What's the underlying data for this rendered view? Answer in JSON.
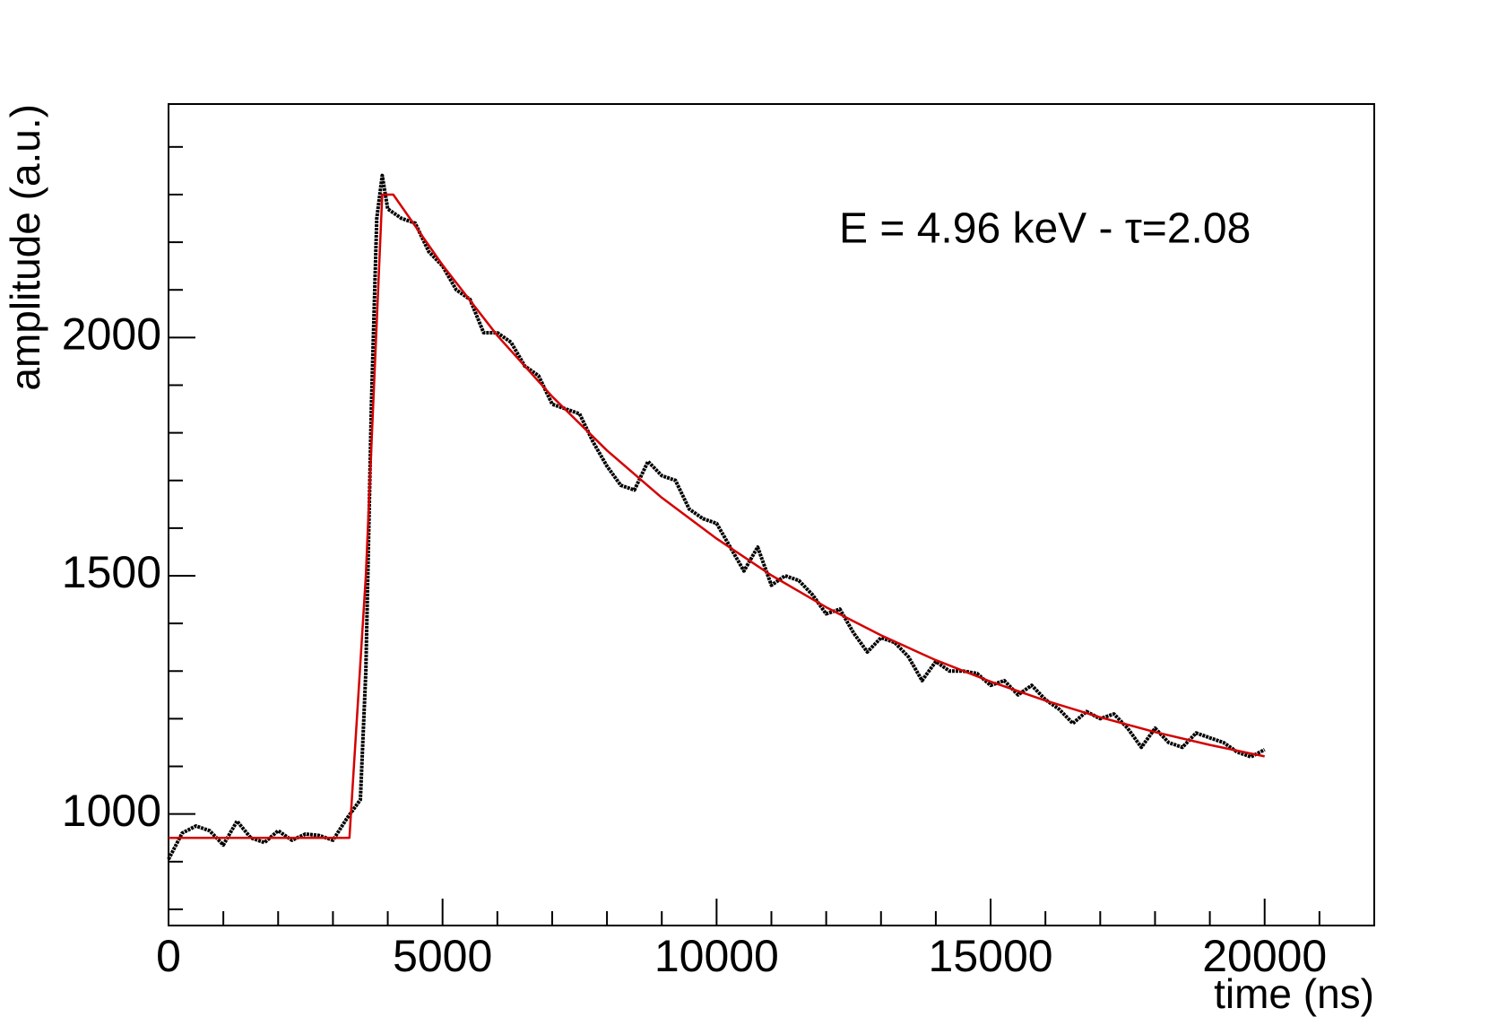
{
  "chart_data": {
    "type": "line",
    "annotation": "E = 4.96 keV - τ=2.08",
    "xlabel": "time (ns)",
    "ylabel": "amplitude (a.u.)",
    "xlim": [
      0,
      22000
    ],
    "xticks": [
      0,
      5000,
      10000,
      15000,
      20000
    ],
    "xminor_ticks": [
      1000,
      2000,
      3000,
      4000,
      6000,
      7000,
      8000,
      9000,
      11000,
      12000,
      13000,
      14000,
      16000,
      17000,
      18000,
      19000,
      21000
    ],
    "ylim": [
      766,
      2490
    ],
    "yticks": [
      1000,
      1500,
      2000
    ],
    "yminor_ticks": [
      800,
      900,
      1100,
      1200,
      1300,
      1400,
      1600,
      1700,
      1800,
      1900,
      2100,
      2200,
      2300,
      2400
    ],
    "series": [
      {
        "color": "#000000",
        "x": [
          0,
          250,
          500,
          750,
          1000,
          1250,
          1500,
          1750,
          2000,
          2250,
          2500,
          2750,
          3000,
          3250,
          3500,
          3600,
          3700,
          3800,
          3900,
          4000,
          4250,
          4500,
          4750,
          5000,
          5250,
          5500,
          5750,
          6000,
          6250,
          6500,
          6750,
          7000,
          7250,
          7500,
          7750,
          8000,
          8250,
          8500,
          8750,
          9000,
          9250,
          9500,
          9750,
          10000,
          10250,
          10500,
          10750,
          11000,
          11250,
          11500,
          11750,
          12000,
          12250,
          12500,
          12750,
          13000,
          13250,
          13500,
          13750,
          14000,
          14250,
          14500,
          14750,
          15000,
          15250,
          15500,
          15750,
          16000,
          16250,
          16500,
          16750,
          17000,
          17250,
          17500,
          17750,
          18000,
          18250,
          18500,
          18750,
          19000,
          19250,
          19500,
          19750,
          20000
        ],
        "values": [
          905,
          960,
          975,
          965,
          935,
          985,
          950,
          940,
          965,
          945,
          958,
          955,
          945,
          990,
          1030,
          1300,
          1850,
          2250,
          2340,
          2270,
          2250,
          2240,
          2180,
          2150,
          2100,
          2080,
          2010,
          2010,
          1990,
          1940,
          1920,
          1860,
          1850,
          1840,
          1780,
          1730,
          1690,
          1680,
          1740,
          1710,
          1700,
          1640,
          1620,
          1610,
          1560,
          1510,
          1560,
          1480,
          1500,
          1490,
          1460,
          1420,
          1430,
          1380,
          1340,
          1370,
          1360,
          1330,
          1280,
          1320,
          1300,
          1300,
          1295,
          1270,
          1280,
          1250,
          1270,
          1240,
          1220,
          1190,
          1215,
          1200,
          1210,
          1180,
          1140,
          1180,
          1150,
          1140,
          1170,
          1160,
          1150,
          1130,
          1120,
          1135
        ]
      },
      {
        "color": "#d40000",
        "x": [
          0,
          3300,
          3600,
          3900,
          4100,
          5000,
          6000,
          7000,
          8000,
          9000,
          10000,
          11000,
          12000,
          13000,
          14000,
          15000,
          16000,
          17000,
          18000,
          19000,
          20000
        ],
        "values": [
          950,
          950,
          1500,
          2300,
          2300,
          2152,
          2004,
          1876,
          1763,
          1664,
          1578,
          1501,
          1434,
          1375,
          1323,
          1278,
          1238,
          1203,
          1172,
          1145,
          1121
        ]
      }
    ]
  }
}
